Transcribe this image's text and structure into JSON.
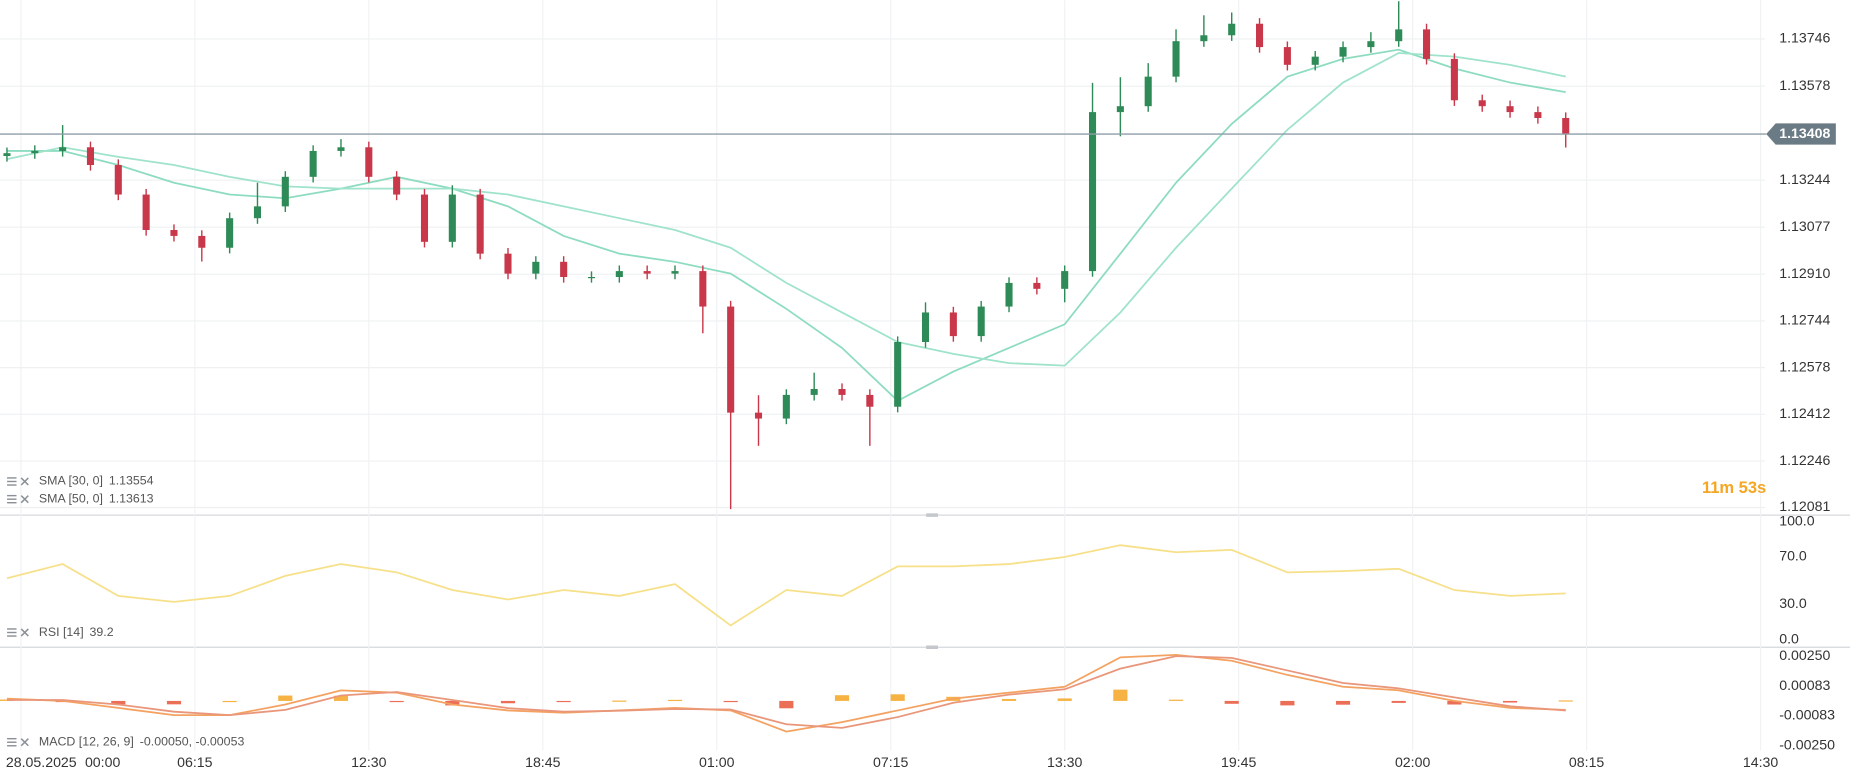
{
  "chart_data": [
    {
      "type": "candlestick",
      "date_label": "28.05.2025",
      "xlim": [
        -0.75,
        63
      ],
      "xticks": [
        {
          "value": 0,
          "label": "00:00"
        },
        {
          "value": 6.25,
          "label": "06:15"
        },
        {
          "value": 12.5,
          "label": "12:30"
        },
        {
          "value": 18.75,
          "label": "18:45"
        },
        {
          "value": 25,
          "label": "01:00"
        },
        {
          "value": 31.25,
          "label": "07:15"
        },
        {
          "value": 37.5,
          "label": "13:30"
        },
        {
          "value": 43.75,
          "label": "19:45"
        },
        {
          "value": 50,
          "label": "02:00"
        },
        {
          "value": 56.25,
          "label": "08:15"
        },
        {
          "value": 62.5,
          "label": "14:30"
        }
      ],
      "ylim": [
        1.12056,
        1.13884
      ],
      "yticks": [
        1.13746,
        1.13578,
        1.13244,
        1.13077,
        {
          "value": 1.1291,
          "label": "1.12910"
        },
        1.12744,
        1.12578,
        1.12412,
        1.12246,
        1.12081
      ],
      "grid": true,
      "last_price": 1.13408,
      "countdown": "11m 53s",
      "candles": {
        "up_color": "#2e8b57",
        "down_color": "#c8384a",
        "x": [
          -0.5,
          0.5,
          1.5,
          2.5,
          3.5,
          4.5,
          5.5,
          6.5,
          7.5,
          8.5,
          9.5,
          10.5,
          11.5,
          12.5,
          13.5,
          14.5,
          15.5,
          16.5,
          17.5,
          18.5,
          19.5,
          20.5,
          21.5,
          22.5,
          23.5,
          24.5,
          25.5,
          26.5,
          27.5,
          28.5,
          29.5,
          30.5,
          31.5,
          32.5,
          33.5,
          34.5,
          35.5,
          36.5,
          37.5,
          38.5,
          39.5,
          40.5,
          41.5,
          42.5,
          43.5,
          44.5,
          45.5,
          46.5,
          47.5,
          48.5,
          49.5,
          50.5,
          51.5,
          52.5,
          53.5,
          54.5,
          55.5
        ],
        "open": [
          1.1333,
          1.1334,
          1.13348,
          1.13361,
          1.13298,
          1.13193,
          1.13067,
          1.13046,
          1.13004,
          1.13109,
          1.13151,
          1.13256,
          1.13348,
          1.13361,
          1.13256,
          1.13193,
          1.13025,
          1.13193,
          1.12983,
          1.12912,
          1.12954,
          1.129,
          1.129,
          1.12921,
          1.12912,
          1.12921,
          1.12795,
          1.12418,
          1.12397,
          1.12481,
          1.12502,
          1.12481,
          1.12439,
          1.12669,
          1.12774,
          1.1269,
          1.12795,
          1.12879,
          1.12858,
          1.12921,
          1.13486,
          1.13507,
          1.13612,
          1.13738,
          1.13759,
          1.138,
          1.13717,
          1.13654,
          1.13683,
          1.13717,
          1.13738,
          1.1378,
          1.13675,
          1.13528,
          1.13507,
          1.13486,
          1.13465
        ],
        "high": [
          1.1336,
          1.13368,
          1.1344,
          1.13381,
          1.13318,
          1.13213,
          1.13087,
          1.13066,
          1.13129,
          1.13235,
          1.13276,
          1.13368,
          1.1339,
          1.13381,
          1.13276,
          1.13213,
          1.13226,
          1.13213,
          1.13003,
          1.12974,
          1.12974,
          1.1292,
          1.12941,
          1.12941,
          1.12941,
          1.12941,
          1.12815,
          1.1248,
          1.12501,
          1.1256,
          1.12522,
          1.12501,
          1.12689,
          1.1281,
          1.12794,
          1.12815,
          1.12899,
          1.12899,
          1.12941,
          1.1359,
          1.1361,
          1.1366,
          1.1378,
          1.1383,
          1.1384,
          1.1382,
          1.13737,
          1.13703,
          1.13737,
          1.1377,
          1.1388,
          1.138,
          1.13695,
          1.13548,
          1.13527,
          1.13506,
          1.13485
        ],
        "low": [
          1.1331,
          1.1332,
          1.13328,
          1.13278,
          1.13173,
          1.13047,
          1.13026,
          1.12955,
          1.12984,
          1.13089,
          1.13131,
          1.13236,
          1.13328,
          1.13236,
          1.13173,
          1.13005,
          1.13005,
          1.12963,
          1.12892,
          1.12892,
          1.1288,
          1.1288,
          1.1288,
          1.12892,
          1.12892,
          1.127,
          1.12075,
          1.123,
          1.12377,
          1.12461,
          1.12461,
          1.123,
          1.12419,
          1.12649,
          1.1267,
          1.1267,
          1.12775,
          1.12838,
          1.1281,
          1.12901,
          1.134,
          1.13487,
          1.13592,
          1.13718,
          1.13739,
          1.13697,
          1.13634,
          1.13634,
          1.13663,
          1.13697,
          1.13718,
          1.13655,
          1.13508,
          1.13487,
          1.13466,
          1.13445,
          1.1336
        ],
        "close": [
          1.1334,
          1.13348,
          1.13361,
          1.13298,
          1.13193,
          1.13067,
          1.13046,
          1.13004,
          1.13109,
          1.13151,
          1.13256,
          1.13348,
          1.13361,
          1.13256,
          1.13193,
          1.13025,
          1.13193,
          1.12983,
          1.12912,
          1.12954,
          1.129,
          1.129,
          1.12921,
          1.12912,
          1.12921,
          1.12795,
          1.12418,
          1.12397,
          1.12481,
          1.12502,
          1.12481,
          1.12439,
          1.12669,
          1.12774,
          1.1269,
          1.12795,
          1.12879,
          1.12858,
          1.12921,
          1.13486,
          1.13507,
          1.13612,
          1.13738,
          1.13759,
          1.138,
          1.13717,
          1.13654,
          1.13683,
          1.13717,
          1.13738,
          1.1378,
          1.13675,
          1.13528,
          1.13507,
          1.13486,
          1.13465,
          1.13408
        ]
      },
      "series": [
        {
          "name": "SMA [30, 0]",
          "legend_value": 1.13554,
          "color": "#8ddcc0",
          "x": [
            -0.5,
            1.5,
            3.5,
            5.5,
            7.5,
            9.5,
            11.5,
            13.5,
            15.5,
            17.5,
            19.5,
            21.5,
            23.5,
            25.5,
            27.5,
            29.5,
            31.5,
            33.5,
            35.5,
            37.5,
            39.5,
            41.5,
            43.5,
            45.5,
            47.5,
            49.5,
            51.5,
            53.5,
            55.5
          ],
          "values": [
            1.13348,
            1.13348,
            1.13298,
            1.13235,
            1.13193,
            1.1318,
            1.13214,
            1.13256,
            1.13214,
            1.13151,
            1.13046,
            1.12983,
            1.12954,
            1.12912,
            1.12787,
            1.12648,
            1.1246,
            1.12564,
            1.12648,
            1.12732,
            1.12983,
            1.13235,
            1.13444,
            1.13612,
            1.13675,
            1.13708,
            1.13641,
            1.13591,
            1.13557
          ]
        },
        {
          "name": "SMA [50, 0]",
          "legend_value": 1.13613,
          "color": "#9fe3cb",
          "x": [
            -0.5,
            1.5,
            3.5,
            5.5,
            7.5,
            9.5,
            11.5,
            13.5,
            15.5,
            17.5,
            19.5,
            21.5,
            23.5,
            25.5,
            27.5,
            29.5,
            31.5,
            33.5,
            35.5,
            37.5,
            39.5,
            41.5,
            43.5,
            45.5,
            47.5,
            49.5,
            51.5,
            53.5,
            55.5
          ],
          "values": [
            1.13319,
            1.13361,
            1.13327,
            1.13298,
            1.13256,
            1.13222,
            1.13214,
            1.13214,
            1.13214,
            1.13193,
            1.13151,
            1.13109,
            1.13067,
            1.13004,
            1.12879,
            1.12774,
            1.12669,
            1.12627,
            1.12594,
            1.12585,
            1.12774,
            1.13004,
            1.13214,
            1.13423,
            1.13591,
            1.13696,
            1.13683,
            1.13654,
            1.13612
          ]
        }
      ]
    },
    {
      "type": "line",
      "name": "RSI [14]",
      "legend_value": 39.2,
      "color": "#f7e08a",
      "ylim": [
        0,
        100
      ],
      "yticks": [
        {
          "value": 100,
          "label": "100.0"
        },
        {
          "value": 70,
          "label": "70.0"
        },
        {
          "value": 30,
          "label": "30.0"
        },
        {
          "value": 0,
          "label": "0.0"
        }
      ],
      "grid": false,
      "x": [
        -0.5,
        1.5,
        3.5,
        5.5,
        7.5,
        9.5,
        11.5,
        13.5,
        15.5,
        17.5,
        19.5,
        21.5,
        23.5,
        25.5,
        27.5,
        29.5,
        31.5,
        33.5,
        35.5,
        37.5,
        39.5,
        41.5,
        43.5,
        45.5,
        47.5,
        49.5,
        51.5,
        53.5,
        55.5
      ],
      "values": [
        52,
        64,
        37,
        32,
        37,
        54,
        64,
        57,
        42,
        34,
        42,
        37,
        47,
        12,
        42,
        37,
        62,
        62,
        64,
        70,
        80,
        74,
        76,
        57,
        58,
        60,
        42,
        37,
        39.2
      ]
    },
    {
      "type": "macd",
      "name": "MACD [12, 26, 9]",
      "legend_label": "-0.00050, -0.00053",
      "ylim": [
        -0.0025,
        0.0025
      ],
      "yticks": [
        {
          "value": 0.0025,
          "label": "0.00250"
        },
        {
          "value": 0.00083,
          "label": "0.00083"
        },
        {
          "value": -0.00083,
          "label": "-0.00083"
        },
        {
          "value": -0.0025,
          "label": "-0.00250"
        }
      ],
      "grid": false,
      "x": [
        -0.5,
        1.5,
        3.5,
        5.5,
        7.5,
        9.5,
        11.5,
        13.5,
        15.5,
        17.5,
        19.5,
        21.5,
        23.5,
        25.5,
        27.5,
        29.5,
        31.5,
        33.5,
        35.5,
        37.5,
        39.5,
        41.5,
        43.5,
        45.5,
        47.5,
        49.5,
        51.5,
        53.5,
        55.5
      ],
      "series": [
        {
          "color": "#f4a261",
          "values": [
            0.00013,
            0,
            -0.00039,
            -0.00079,
            -0.00079,
            -0.0002,
            0.00059,
            0.00046,
            -0.0002,
            -0.00053,
            -0.00066,
            -0.00053,
            -0.00039,
            -0.00053,
            -0.00171,
            -0.00118,
            -0.00053,
            0.00013,
            0.00046,
            0.00079,
            0.00243,
            0.00257,
            0.00224,
            0.00145,
            0.00079,
            0.00059,
            0,
            -0.00039,
            -0.0005
          ]
        },
        {
          "color": "#e9967a",
          "values": [
            5e-05,
            5e-05,
            -0.0002,
            -0.0006,
            -0.00079,
            -0.0005,
            0.0003,
            0.0005,
            5e-05,
            -0.0004,
            -0.0006,
            -0.00055,
            -0.00045,
            -0.00048,
            -0.0013,
            -0.0015,
            -0.0009,
            -0.0001,
            0.00035,
            0.00065,
            0.0018,
            0.0025,
            0.0024,
            0.0017,
            0.001,
            0.0007,
            0.0002,
            -0.0003,
            -0.00053
          ]
        }
      ],
      "histogram": {
        "color": "#f5a623",
        "negative_color": "#e8553a",
        "values": [
          8e-05,
          -5e-05,
          -0.00019,
          -0.00019,
          0,
          0.0003,
          0.00029,
          -4e-05,
          -0.00025,
          -0.00013,
          -6e-05,
          2e-05,
          6e-05,
          -5e-05,
          -0.00041,
          0.00032,
          0.00037,
          0.00023,
          0.00011,
          0.00014,
          0.00063,
          7e-05,
          -0.00016,
          -0.00025,
          -0.00021,
          -0.00011,
          -0.0002,
          -9e-05,
          3e-05
        ]
      }
    }
  ]
}
